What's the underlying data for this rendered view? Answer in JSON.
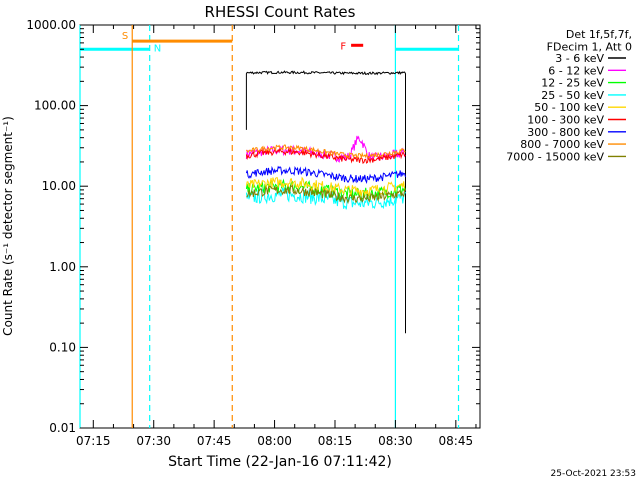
{
  "chart_data": {
    "type": "line",
    "title": "RHESSI Count Rates",
    "xlabel": "Start Time (22-Jan-16 07:11:42)",
    "ylabel": "Count Rate (s⁻¹ detector segment⁻¹)",
    "y_scale": "log",
    "ylim": [
      0.01,
      1000
    ],
    "xlim": [
      "07:11:42",
      "08:51:00"
    ],
    "grid": false,
    "legend_position": "top-right, outside plot",
    "x_ticks": [
      "07:15",
      "07:30",
      "07:45",
      "08:00",
      "08:15",
      "08:30",
      "08:45"
    ],
    "y_ticks": [
      "0.01",
      "0.10",
      "1.00",
      "10.00",
      "100.00",
      "1000.00"
    ],
    "legend_header": [
      "Det 1f,5f,7f,",
      "FDecim 1, Att 0"
    ],
    "series": [
      {
        "name": "3 - 6 keV",
        "color": "#000000",
        "start": "07:53:00",
        "end": "08:32:30",
        "level": 255,
        "drop": 50
      },
      {
        "name": "6 - 12 keV",
        "color": "#ff00ff",
        "start": "07:53:00",
        "end": "08:32:30",
        "level": 25,
        "bump": {
          "time": "08:21:00",
          "value": 42
        }
      },
      {
        "name": "12 - 25 keV",
        "color": "#00ff00",
        "start": "07:53:00",
        "end": "08:32:30",
        "level": 9
      },
      {
        "name": "25 - 50 keV",
        "color": "#00ffff",
        "start": "07:53:00",
        "end": "08:32:30",
        "level": 7
      },
      {
        "name": "50 - 100 keV",
        "color": "#ffd700",
        "start": "07:53:00",
        "end": "08:32:30",
        "level": 10
      },
      {
        "name": "100 - 300 keV",
        "color": "#ff0000",
        "start": "07:53:00",
        "end": "08:32:30",
        "level": 24
      },
      {
        "name": "300 - 800 keV",
        "color": "#0000ff",
        "start": "07:53:00",
        "end": "08:32:30",
        "level": 14
      },
      {
        "name": "800 - 7000 keV",
        "color": "#ff8c00",
        "start": "07:53:00",
        "end": "08:32:30",
        "level": 27
      },
      {
        "name": "7000 - 15000 keV",
        "color": "#808000",
        "start": "07:53:00",
        "end": "08:32:30",
        "level": 8
      }
    ],
    "annotations": {
      "saa": {
        "label": "S",
        "color": "#ff8c00",
        "start": "07:24:40",
        "end": "07:49:30",
        "level_marker": 630
      },
      "night": {
        "label": "N",
        "color": "#00ffff",
        "intervals": [
          [
            "07:11:42",
            "07:29:00"
          ],
          [
            "08:30:00",
            "08:45:40"
          ]
        ],
        "level_marker": 500
      },
      "flare": {
        "label": "F",
        "color": "#ff0000",
        "start": "08:19:00",
        "end": "08:22:00",
        "level_marker": 560
      }
    }
  },
  "footer": {
    "timestamp": "25-Oct-2021 23:53"
  }
}
